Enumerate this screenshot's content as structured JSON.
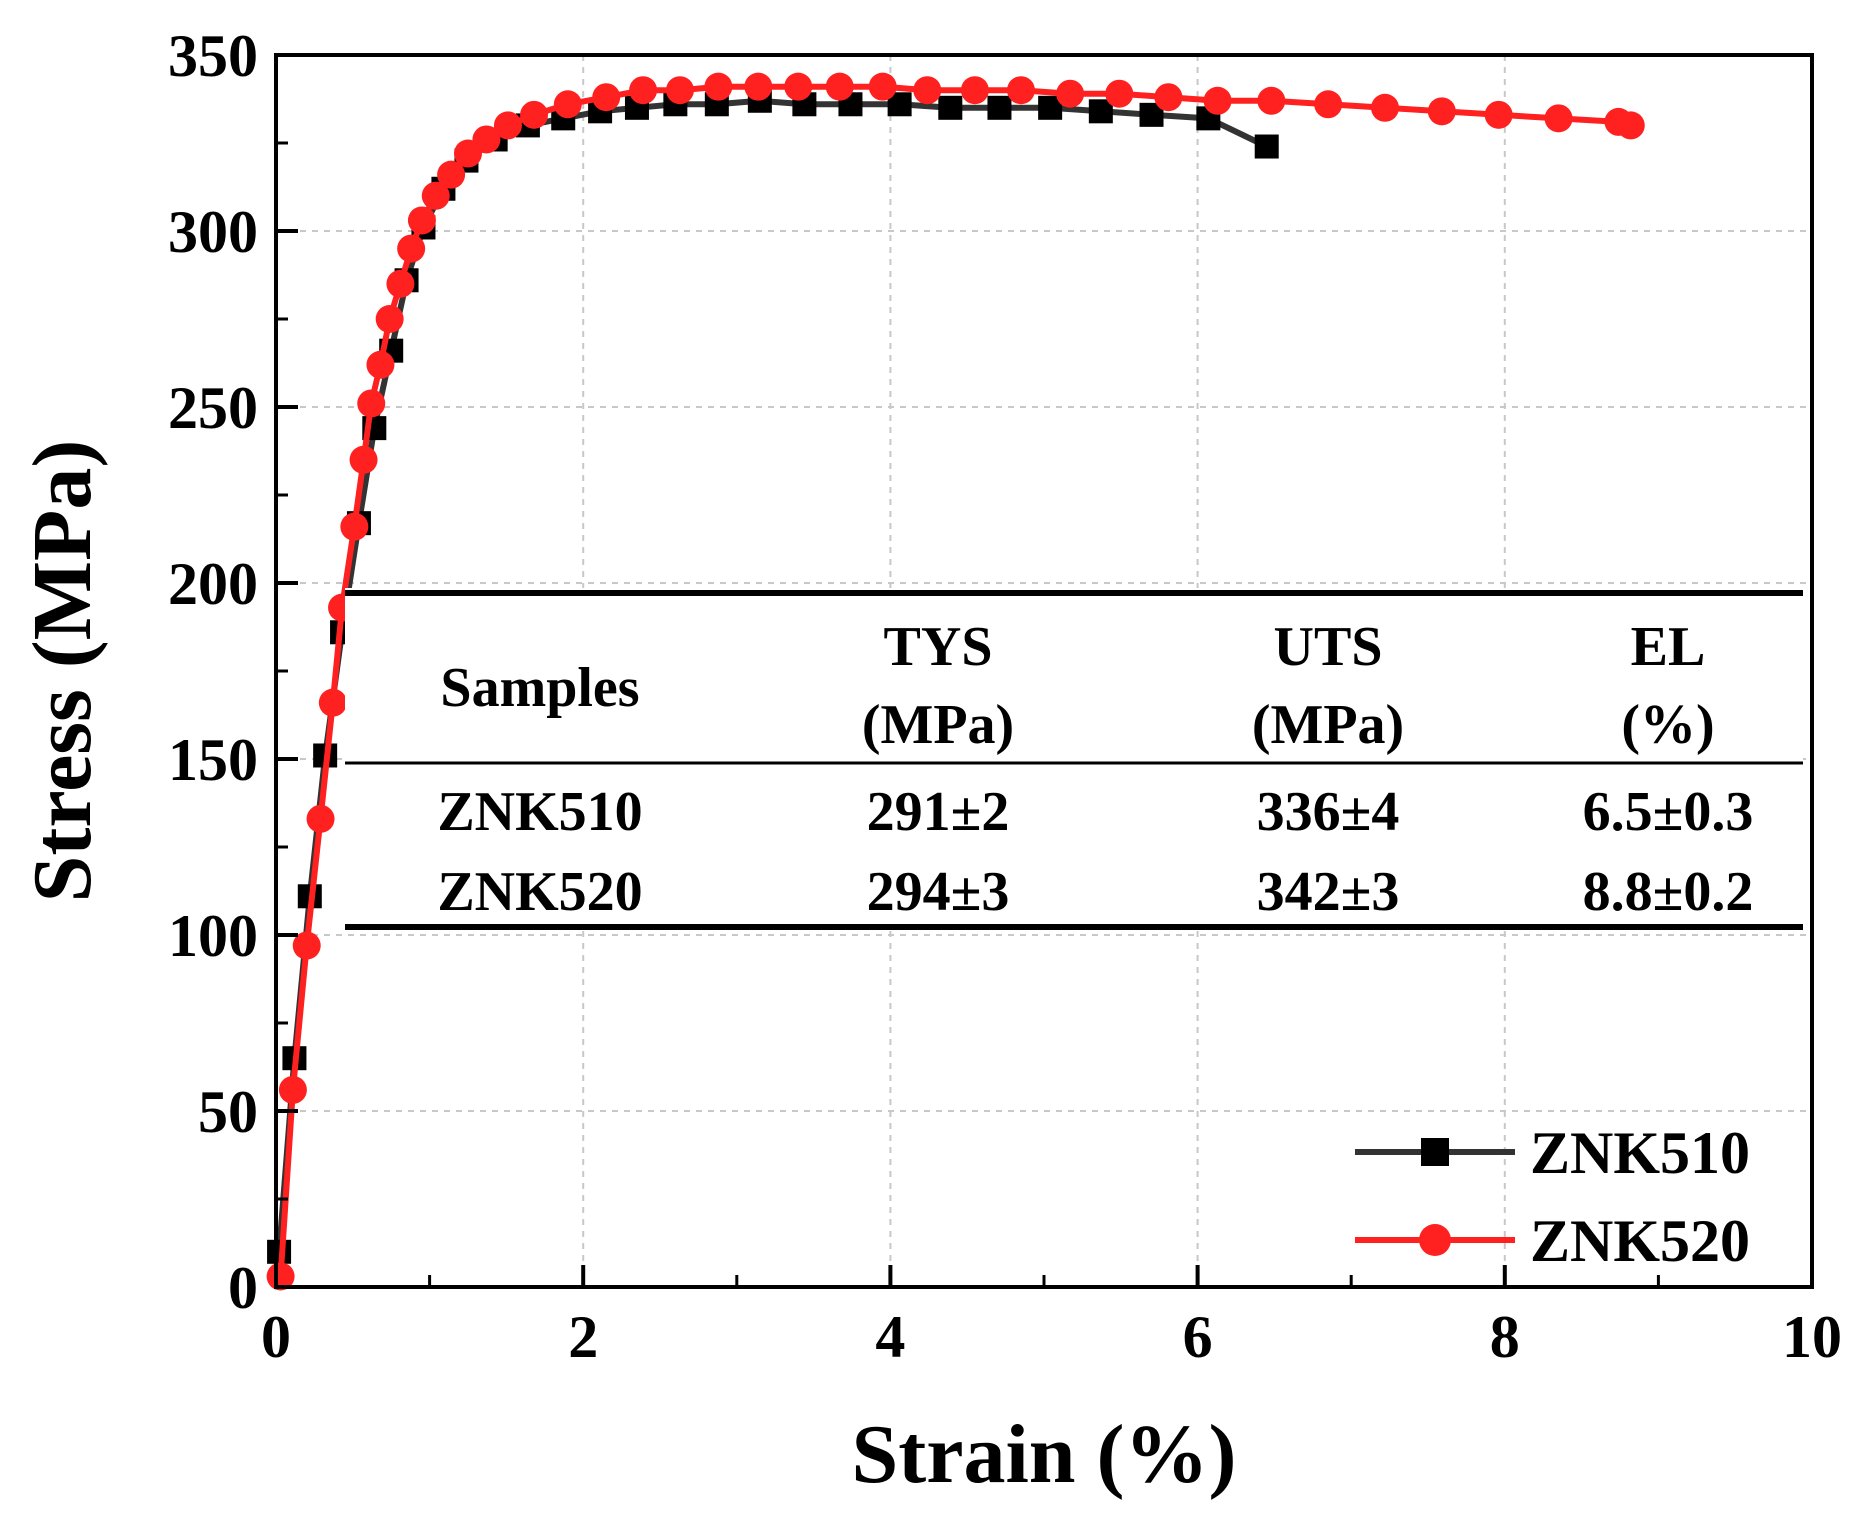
{
  "chart_data": {
    "type": "line",
    "title": "",
    "xlabel": "Strain (%)",
    "ylabel": "Stress (MPa)",
    "xlim": [
      0,
      10
    ],
    "ylim": [
      0,
      350
    ],
    "xticks": [
      0,
      2,
      4,
      6,
      8,
      10
    ],
    "yticks": [
      0,
      50,
      100,
      150,
      200,
      250,
      300,
      350
    ],
    "grid": true,
    "legend_position": "bottom-right",
    "series": [
      {
        "name": "ZNK510",
        "color": "#333333",
        "marker": "square",
        "x": [
          0.02,
          0.12,
          0.22,
          0.32,
          0.43,
          0.54,
          0.64,
          0.75,
          0.85,
          0.96,
          1.09,
          1.24,
          1.43,
          1.64,
          1.87,
          2.11,
          2.35,
          2.6,
          2.87,
          3.15,
          3.44,
          3.74,
          4.06,
          4.39,
          4.71,
          5.04,
          5.37,
          5.7,
          6.07,
          6.45
        ],
        "y": [
          10,
          65,
          111,
          151,
          186,
          217,
          244,
          266,
          286,
          301,
          312,
          320,
          326,
          330,
          332,
          334,
          335,
          336,
          336,
          337,
          336,
          336,
          336,
          335,
          335,
          335,
          334,
          333,
          332,
          324
        ]
      },
      {
        "name": "ZNK520",
        "color": "#ff2020",
        "marker": "circle",
        "x": [
          0.03,
          0.11,
          0.2,
          0.29,
          0.37,
          0.43,
          0.51,
          0.57,
          0.62,
          0.68,
          0.74,
          0.81,
          0.88,
          0.95,
          1.04,
          1.14,
          1.25,
          1.37,
          1.51,
          1.68,
          1.9,
          2.15,
          2.39,
          2.63,
          2.88,
          3.14,
          3.4,
          3.67,
          3.95,
          4.24,
          4.55,
          4.85,
          5.17,
          5.49,
          5.81,
          6.13,
          6.48,
          6.85,
          7.22,
          7.59,
          7.96,
          8.35,
          8.74,
          8.82
        ],
        "y": [
          3,
          56,
          97,
          133,
          166,
          193,
          216,
          235,
          251,
          262,
          275,
          285,
          295,
          303,
          310,
          316,
          322,
          326,
          330,
          333,
          336,
          338,
          340,
          340,
          341,
          341,
          341,
          341,
          341,
          340,
          340,
          340,
          339,
          339,
          338,
          337,
          337,
          336,
          335,
          334,
          333,
          332,
          331,
          330
        ]
      }
    ],
    "annotation_table": {
      "headers": [
        {
          "line1": "Samples",
          "line2": ""
        },
        {
          "line1": "TYS",
          "line2": "(MPa)"
        },
        {
          "line1": "UTS",
          "line2": "(MPa)"
        },
        {
          "line1": "EL",
          "line2": "(%)"
        }
      ],
      "rows": [
        {
          "sample": "ZNK510",
          "tys": "291±2",
          "uts": "336±4",
          "el": "6.5±0.3"
        },
        {
          "sample": "ZNK520",
          "tys": "294±3",
          "uts": "342±3",
          "el": "8.8±0.2"
        }
      ]
    }
  }
}
